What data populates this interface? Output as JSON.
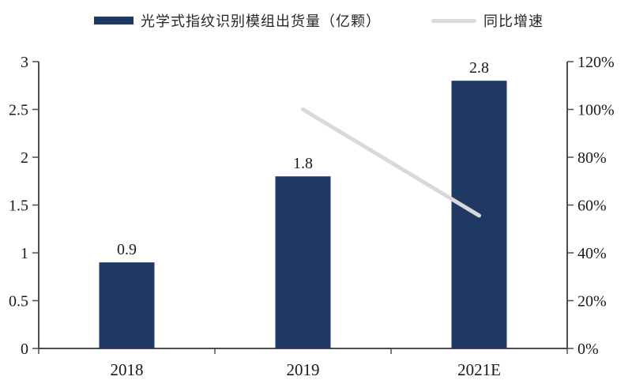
{
  "chart_data": {
    "type": "combo",
    "title": "",
    "categories": [
      "2018",
      "2019",
      "2021E"
    ],
    "series": [
      {
        "name": "光学式指纹识别模组出货量（亿颗）",
        "type": "bar",
        "axis": "left",
        "values": [
          0.9,
          1.8,
          2.8
        ],
        "data_labels": [
          "0.9",
          "1.8",
          "2.8"
        ],
        "color": "#1f3864"
      },
      {
        "name": "同比增速",
        "type": "line",
        "axis": "right",
        "values": [
          null,
          100,
          55.6
        ],
        "color": "#d9d9d9"
      }
    ],
    "left_axis": {
      "min": 0,
      "max": 3,
      "tick_labels": [
        "0",
        "0.5",
        "1",
        "1.5",
        "2",
        "2.5",
        "3"
      ]
    },
    "right_axis": {
      "min": 0,
      "max": 120,
      "tick_labels": [
        "0%",
        "20%",
        "40%",
        "60%",
        "80%",
        "100%",
        "120%"
      ]
    },
    "legend_position": "top",
    "grid": false,
    "colors": {
      "axis": "#4d4d4d",
      "text": "#1a1a1a",
      "background": "#ffffff"
    }
  }
}
